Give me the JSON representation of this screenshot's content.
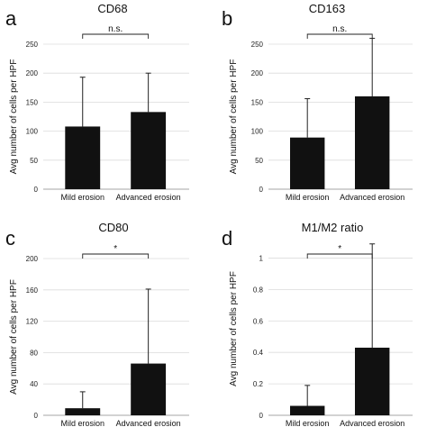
{
  "figure": {
    "panels": [
      "a",
      "b",
      "c",
      "d"
    ]
  },
  "chart_data": [
    {
      "type": "bar",
      "panel": "a",
      "title": "CD68",
      "ylabel": "Avg number of cells per HPF",
      "categories": [
        "Mild erosion",
        "Advanced erosion"
      ],
      "values": [
        108,
        133
      ],
      "error_upper": [
        193,
        200
      ],
      "ylim": [
        0,
        250
      ],
      "yticks": [
        0,
        50,
        100,
        150,
        200,
        250
      ],
      "significance": "n.s.",
      "grid": true
    },
    {
      "type": "bar",
      "panel": "b",
      "title": "CD163",
      "ylabel": "Avg number of cells per HPF",
      "categories": [
        "Mild erosion",
        "Advanced erosion"
      ],
      "values": [
        89,
        160
      ],
      "error_upper": [
        156,
        260
      ],
      "ylim": [
        0,
        250
      ],
      "yticks": [
        0,
        50,
        100,
        150,
        200,
        250
      ],
      "significance": "n.s.",
      "grid": true
    },
    {
      "type": "bar",
      "panel": "c",
      "title": "CD80",
      "ylabel": "Avg number of cells per HPF",
      "categories": [
        "Mild erosion",
        "Advanced erosion"
      ],
      "values": [
        9,
        66
      ],
      "error_upper": [
        30,
        161
      ],
      "ylim": [
        0,
        200
      ],
      "yticks": [
        0,
        40,
        80,
        120,
        160,
        200
      ],
      "significance": "*",
      "grid": true
    },
    {
      "type": "bar",
      "panel": "d",
      "title": "M1/M2 ratio",
      "ylabel": "Avg number of cells per HPF",
      "categories": [
        "Mild erosion",
        "Advanced erosion"
      ],
      "values": [
        0.06,
        0.43
      ],
      "error_upper": [
        0.19,
        1.09
      ],
      "ylim": [
        0,
        1.1
      ],
      "yticks": [
        0,
        0.2,
        0.4,
        0.6,
        0.8,
        1
      ],
      "significance": "*",
      "grid": true
    }
  ]
}
